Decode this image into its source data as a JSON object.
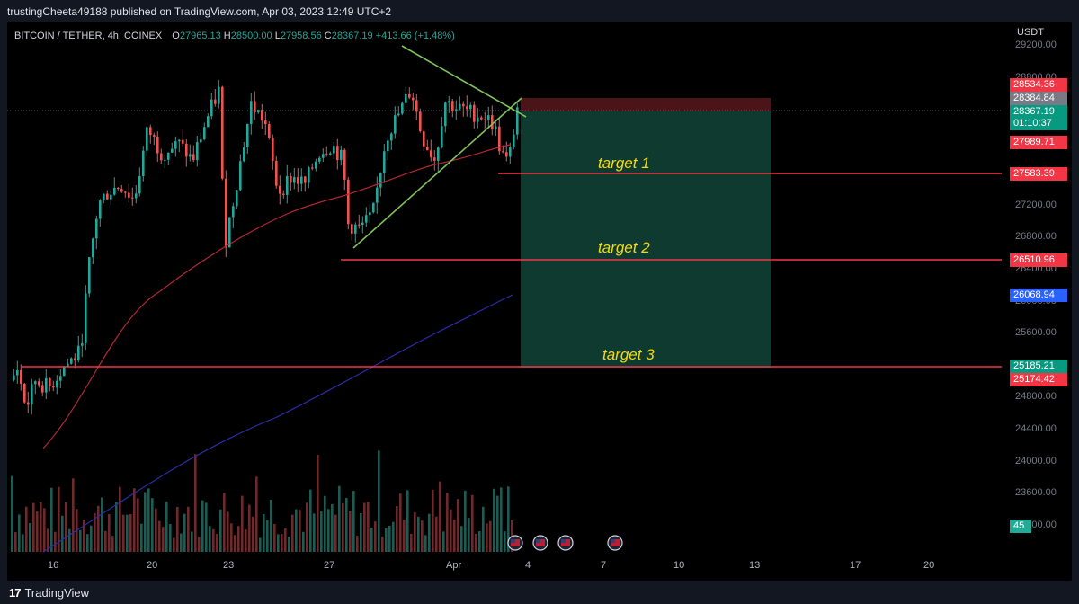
{
  "header": {
    "publisher_line": "trustingCheeta49188 published on TradingView.com, Apr 03, 2023 12:49 UTC+2"
  },
  "legend": {
    "symbol": "BITCOIN / TETHER, 4h, COINEX",
    "o_label": "O",
    "o_value": "27965.13",
    "h_label": "H",
    "h_value": "28500.00",
    "l_label": "L",
    "l_value": "27958.56",
    "c_label": "C",
    "c_value": "28367.19",
    "change": "+413.66 (+1.48%)"
  },
  "price_axis": {
    "currency": "USDT",
    "ticks": [
      "29200.00",
      "28800.00",
      "27200.00",
      "26800.00",
      "26400.00",
      "26000.00",
      "25600.00",
      "24800.00",
      "24400.00",
      "24000.00",
      "23600.00",
      "23200.00"
    ]
  },
  "price_badges": [
    {
      "label": "28534.36",
      "color": "#f23645"
    },
    {
      "label": "28384.84",
      "color": "#787b86"
    },
    {
      "label": "28367.19",
      "color": "#089981"
    },
    {
      "label": "01:10:37",
      "color": "#089981"
    },
    {
      "label": "27989.71",
      "color": "#f23645"
    },
    {
      "label": "27583.39",
      "color": "#f23645"
    },
    {
      "label": "26510.96",
      "color": "#f23645"
    },
    {
      "label": "26068.94",
      "color": "#2962ff"
    },
    {
      "label": "25185.21",
      "color": "#089981"
    },
    {
      "label": "25174.42",
      "color": "#f23645"
    },
    {
      "label": "45",
      "color": "#22ab94"
    }
  ],
  "time_axis": {
    "ticks": [
      "16",
      "20",
      "23",
      "27",
      "Apr",
      "4",
      "7",
      "10",
      "13",
      "17",
      "20"
    ]
  },
  "annotations": {
    "target1": "target 1",
    "target2": "target 2",
    "target3": "target 3"
  },
  "colors": {
    "up": "#26a69a",
    "down": "#ef5350",
    "ma_short": "#b22833",
    "ma_long": "#2a2ea8",
    "trend": "#7ec55a",
    "target_line": "#f23645",
    "profit_zone": "#0e3a30",
    "stop_zone": "#4a1419"
  },
  "icons": [
    "us-flag-event-icon",
    "us-flag-event-icon",
    "us-flag-event-icon",
    "us-flag-event-icon"
  ],
  "footer": {
    "brand": "TradingView"
  }
}
